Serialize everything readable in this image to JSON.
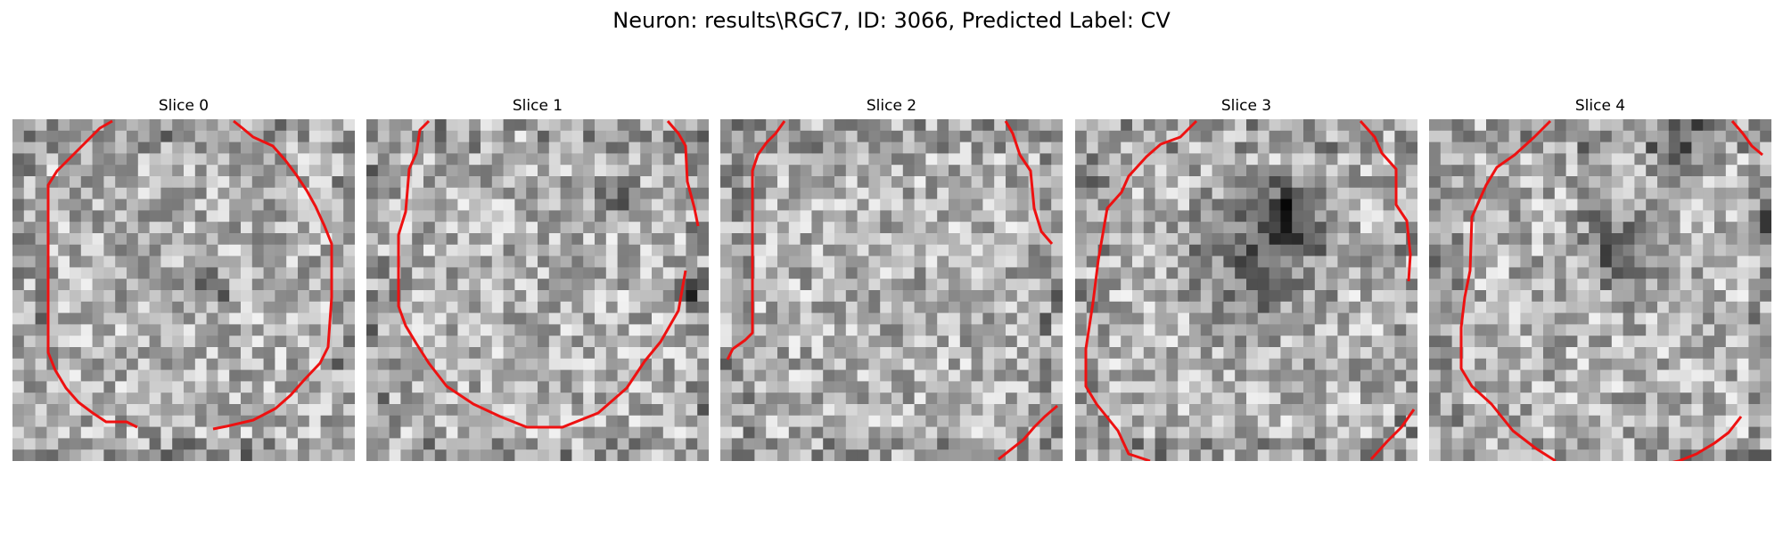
{
  "figure": {
    "suptitle": "Neuron: results\\RGC7, ID: 3066, Predicted Label: CV"
  },
  "panels": [
    {
      "title": "Slice 0",
      "seed": 11,
      "dark_spots": [
        [
          0.56,
          0.48,
          0.05
        ]
      ]
    },
    {
      "title": "Slice 1",
      "seed": 23,
      "dark_spots": [
        [
          0.73,
          0.22,
          0.06
        ],
        [
          0.95,
          0.48,
          0.05
        ]
      ]
    },
    {
      "title": "Slice 2",
      "seed": 37,
      "dark_spots": [
        [
          0.98,
          0.49,
          0.04
        ]
      ]
    },
    {
      "title": "Slice 3",
      "seed": 41,
      "dark_spots": [
        [
          0.52,
          0.38,
          0.18
        ],
        [
          0.62,
          0.25,
          0.1
        ]
      ]
    },
    {
      "title": "Slice 4",
      "seed": 59,
      "dark_spots": [
        [
          0.72,
          0.05,
          0.08
        ],
        [
          0.55,
          0.35,
          0.12
        ],
        [
          0.95,
          0.3,
          0.06
        ]
      ]
    }
  ],
  "contour_color": "#ee1111"
}
